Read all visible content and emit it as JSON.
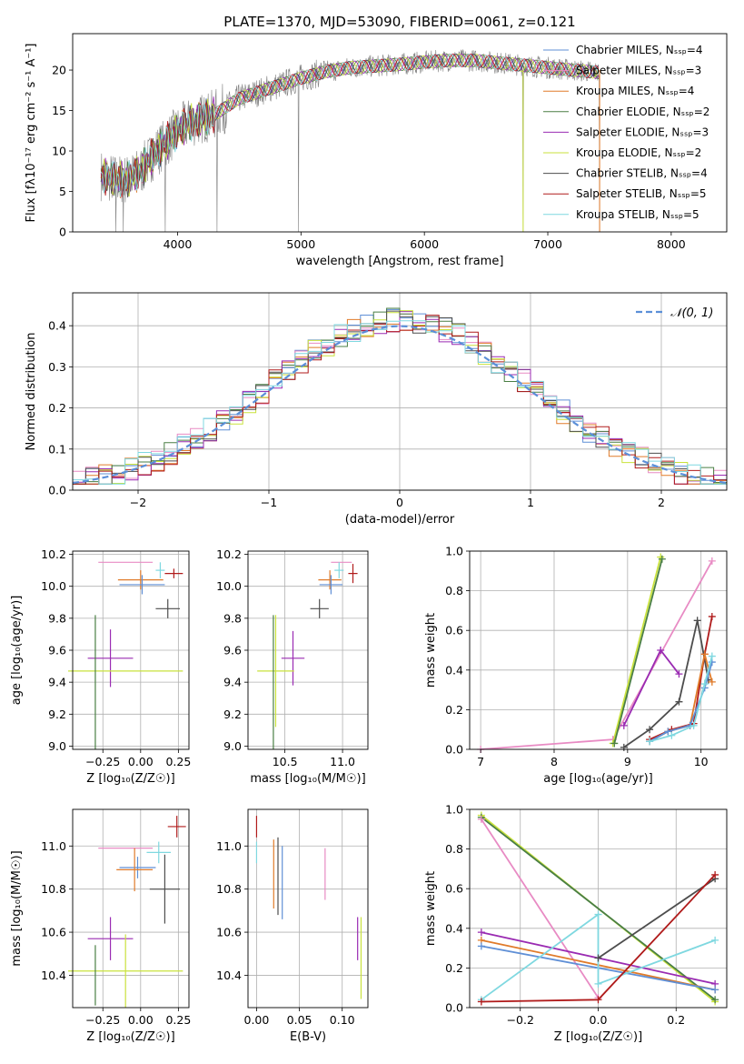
{
  "figure": {
    "title": "PLATE=1370, MJD=53090, FIBERID=0061, z=0.121"
  },
  "colors": {
    "Chabrier MILES": "#5f8fd6",
    "Salpeter MILES": "#e88bc4",
    "Kroupa MILES": "#e07b2a",
    "Chabrier ELODIE": "#4a7f44",
    "Salpeter ELODIE": "#9a2bb2",
    "Kroupa ELODIE": "#c9e23c",
    "Chabrier STELIB": "#4d4d4d",
    "Salpeter STELIB": "#b01b1b",
    "Kroupa STELIB": "#7fd8e0",
    "data": "#808080",
    "normal": "#5b8fd8"
  },
  "chart_data": [
    {
      "id": "spectrum",
      "type": "line",
      "xlabel": "wavelength [Angstrom, rest frame]",
      "ylabel": "Flux [fλ10⁻¹⁷ erg cm⁻² s⁻¹ A⁻¹]",
      "xlim": [
        3150,
        8450
      ],
      "ylim": [
        0,
        24.5
      ],
      "xticks": [
        "4000",
        "5000",
        "6000",
        "7000",
        "8000"
      ],
      "yticks": [
        "0",
        "5",
        "10",
        "15",
        "20"
      ],
      "legend_position": "right",
      "legend": [
        "Chabrier MILES, Nₛₛₚ=4",
        "Salpeter MILES, Nₛₛₚ=3",
        "Kroupa MILES, Nₛₛₚ=4",
        "Chabrier ELODIE, Nₛₛₚ=2",
        "Salpeter ELODIE, Nₛₛₚ=3",
        "Kroupa ELODIE, Nₛₛₚ=2",
        "Chabrier STELIB, Nₛₛₚ=4",
        "Salpeter STELIB, Nₛₛₚ=5",
        "Kroupa STELIB, Nₛₛₚ=5"
      ],
      "continuum": {
        "x": [
          3380,
          3500,
          3600,
          3700,
          3800,
          3900,
          4000,
          4100,
          4200,
          4300,
          4400,
          4500,
          4600,
          4700,
          4800,
          4900,
          5000,
          5200,
          5400,
          5600,
          5800,
          6000,
          6200,
          6400,
          6600,
          6800,
          7000,
          7200,
          7420
        ],
        "y": [
          7.0,
          6.5,
          6.5,
          7.5,
          9.5,
          11.0,
          12.5,
          13.5,
          14.0,
          14.5,
          15.5,
          16.5,
          17.0,
          17.5,
          18.0,
          18.5,
          19.0,
          19.8,
          20.3,
          20.5,
          20.7,
          21.0,
          21.2,
          21.2,
          20.9,
          20.6,
          20.3,
          20.0,
          19.7
        ]
      },
      "data_glitches": {
        "x": [
          3500,
          3560,
          3900,
          4320,
          4980,
          6800,
          7420
        ],
        "y": [
          0,
          0,
          0,
          0,
          0,
          0,
          0
        ]
      }
    },
    {
      "id": "residuals",
      "type": "histogram",
      "xlabel": "(data-model)/error",
      "ylabel": "Normed distribution",
      "xlim": [
        -2.5,
        2.5
      ],
      "ylim": [
        0,
        0.48
      ],
      "xticks": [
        "−2",
        "−1",
        "0",
        "1",
        "2"
      ],
      "yticks": [
        "0.0",
        "0.1",
        "0.2",
        "0.3",
        "0.4"
      ],
      "legend": [
        "𝒩(0, 1)"
      ],
      "legend_position": "top-right",
      "bin_width": 0.1,
      "bin_start": -2.5,
      "reference_curve": "standard normal density"
    },
    {
      "id": "age-vs-Z",
      "type": "errorbar",
      "xlabel": "Z [log₁₀(Z/Z☉)]",
      "ylabel": "age  [log₁₀(age/yr)]",
      "xlim": [
        -0.45,
        0.32
      ],
      "ylim": [
        8.98,
        10.22
      ],
      "xticks": [
        "−0.25",
        "0.00",
        "0.25"
      ],
      "yticks": [
        "9.0",
        "9.2",
        "9.4",
        "9.6",
        "9.8",
        "10.0",
        "10.2"
      ],
      "points": [
        {
          "model": "Salpeter MILES",
          "x": -0.1,
          "xerr": 0.18,
          "y": 10.15,
          "yerr": 0.0
        },
        {
          "model": "Kroupa MILES",
          "x": 0.0,
          "xerr": 0.15,
          "y": 10.04,
          "yerr": 0.06
        },
        {
          "model": "Chabrier MILES",
          "x": 0.01,
          "xerr": 0.15,
          "y": 10.01,
          "yerr": 0.06
        },
        {
          "model": "Kroupa STELIB",
          "x": 0.13,
          "xerr": 0.03,
          "y": 10.1,
          "yerr": 0.05
        },
        {
          "model": "Salpeter STELIB",
          "x": 0.22,
          "xerr": 0.06,
          "y": 10.08,
          "yerr": 0.03
        },
        {
          "model": "Chabrier STELIB",
          "x": 0.18,
          "xerr": 0.08,
          "y": 9.86,
          "yerr": 0.06
        },
        {
          "model": "Salpeter ELODIE",
          "x": -0.2,
          "xerr": 0.15,
          "y": 9.55,
          "yerr": 0.18
        },
        {
          "model": "Kroupa ELODIE",
          "x": -0.1,
          "xerr": 0.38,
          "y": 9.47,
          "yerr": 0.0
        },
        {
          "model": "Chabrier ELODIE",
          "x": -0.3,
          "xerr": 0.0,
          "y": 9.4,
          "yerr": 0.42
        }
      ]
    },
    {
      "id": "age-vs-mass",
      "type": "errorbar",
      "xlabel": "mass [log₁₀(M/M☉)]",
      "ylabel": "",
      "xlim": [
        10.18,
        11.22
      ],
      "ylim": [
        8.98,
        10.22
      ],
      "xticks": [
        "10.5",
        "11.0"
      ],
      "yticks": [
        "9.0",
        "9.2",
        "9.4",
        "9.6",
        "9.8",
        "10.0",
        "10.2"
      ],
      "points": [
        {
          "model": "Salpeter MILES",
          "x": 10.99,
          "xerr": 0.09,
          "y": 10.15,
          "yerr": 0.0
        },
        {
          "model": "Kroupa MILES",
          "x": 10.89,
          "xerr": 0.1,
          "y": 10.04,
          "yerr": 0.06
        },
        {
          "model": "Chabrier MILES",
          "x": 10.9,
          "xerr": 0.1,
          "y": 10.01,
          "yerr": 0.06
        },
        {
          "model": "Kroupa STELIB",
          "x": 10.97,
          "xerr": 0.04,
          "y": 10.1,
          "yerr": 0.05
        },
        {
          "model": "Salpeter STELIB",
          "x": 11.09,
          "xerr": 0.04,
          "y": 10.08,
          "yerr": 0.06
        },
        {
          "model": "Chabrier STELIB",
          "x": 10.8,
          "xerr": 0.08,
          "y": 9.86,
          "yerr": 0.06
        },
        {
          "model": "Salpeter ELODIE",
          "x": 10.57,
          "xerr": 0.1,
          "y": 9.55,
          "yerr": 0.17
        },
        {
          "model": "Kroupa ELODIE",
          "x": 10.42,
          "xerr": 0.16,
          "y": 9.47,
          "yerr": 0.35
        },
        {
          "model": "Chabrier ELODIE",
          "x": 10.4,
          "xerr": 0.0,
          "y": 9.4,
          "yerr": 0.42
        }
      ]
    },
    {
      "id": "weight-vs-age",
      "type": "line",
      "xlabel": "age  [log₁₀(age/yr)]",
      "ylabel": "mass weight",
      "xlim": [
        6.85,
        10.35
      ],
      "ylim": [
        0,
        1
      ],
      "xticks": [
        "7",
        "8",
        "9",
        "10"
      ],
      "yticks": [
        "0.0",
        "0.2",
        "0.4",
        "0.6",
        "0.8",
        "1.0"
      ],
      "series": [
        {
          "model": "Salpeter MILES",
          "x": [
            7.0,
            8.8,
            10.15
          ],
          "y": [
            0.0,
            0.05,
            0.95
          ]
        },
        {
          "model": "Kroupa ELODIE",
          "x": [
            8.8,
            9.45
          ],
          "y": [
            0.03,
            0.97
          ]
        },
        {
          "model": "Chabrier ELODIE",
          "x": [
            8.82,
            9.47
          ],
          "y": [
            0.03,
            0.96
          ]
        },
        {
          "model": "Salpeter ELODIE",
          "x": [
            8.95,
            9.45,
            9.7
          ],
          "y": [
            0.12,
            0.5,
            0.38
          ]
        },
        {
          "model": "Chabrier STELIB",
          "x": [
            8.95,
            9.3,
            9.7,
            9.95,
            10.1
          ],
          "y": [
            0.01,
            0.1,
            0.24,
            0.65,
            0.35
          ]
        },
        {
          "model": "Salpeter STELIB",
          "x": [
            9.3,
            9.6,
            9.9,
            10.05,
            10.15
          ],
          "y": [
            0.05,
            0.1,
            0.13,
            0.48,
            0.67
          ]
        },
        {
          "model": "Kroupa MILES",
          "x": [
            9.3,
            9.55,
            9.85,
            10.05,
            10.15
          ],
          "y": [
            0.04,
            0.09,
            0.12,
            0.48,
            0.34
          ]
        },
        {
          "model": "Chabrier MILES",
          "x": [
            9.3,
            9.55,
            9.85,
            10.05,
            10.15
          ],
          "y": [
            0.04,
            0.09,
            0.12,
            0.31,
            0.44
          ]
        },
        {
          "model": "Kroupa STELIB",
          "x": [
            9.3,
            9.6,
            9.9,
            10.05,
            10.15
          ],
          "y": [
            0.04,
            0.07,
            0.12,
            0.33,
            0.47
          ]
        }
      ]
    },
    {
      "id": "mass-vs-Z",
      "type": "errorbar",
      "xlabel": "Z [log₁₀(Z/Z☉)]",
      "ylabel": "mass [log₁₀(M/M☉)]",
      "xlim": [
        -0.45,
        0.32
      ],
      "ylim": [
        10.25,
        11.17
      ],
      "xticks": [
        "−0.25",
        "0.00",
        "0.25"
      ],
      "yticks": [
        "10.4",
        "10.6",
        "10.8",
        "11.0"
      ],
      "points": [
        {
          "model": "Salpeter STELIB",
          "x": 0.24,
          "xerr": 0.06,
          "y": 11.09,
          "yerr": 0.05
        },
        {
          "model": "Salpeter MILES",
          "x": -0.1,
          "xerr": 0.18,
          "y": 10.99,
          "yerr": 0.0
        },
        {
          "model": "Kroupa STELIB",
          "x": 0.12,
          "xerr": 0.08,
          "y": 10.97,
          "yerr": 0.05
        },
        {
          "model": "Chabrier MILES",
          "x": -0.02,
          "xerr": 0.12,
          "y": 10.9,
          "yerr": 0.05
        },
        {
          "model": "Kroupa MILES",
          "x": -0.04,
          "xerr": 0.12,
          "y": 10.89,
          "yerr": 0.1
        },
        {
          "model": "Chabrier STELIB",
          "x": 0.16,
          "xerr": 0.1,
          "y": 10.8,
          "yerr": 0.16
        },
        {
          "model": "Salpeter ELODIE",
          "x": -0.2,
          "xerr": 0.15,
          "y": 10.57,
          "yerr": 0.1
        },
        {
          "model": "Kroupa ELODIE",
          "x": -0.1,
          "xerr": 0.38,
          "y": 10.42,
          "yerr": 0.17
        },
        {
          "model": "Chabrier ELODIE",
          "x": -0.3,
          "xerr": 0.0,
          "y": 10.4,
          "yerr": 0.14
        }
      ]
    },
    {
      "id": "mass-vs-ebv",
      "type": "errorbar",
      "xlabel": "E(B-V)",
      "ylabel": "",
      "xlim": [
        -0.01,
        0.13
      ],
      "ylim": [
        10.25,
        11.17
      ],
      "xticks": [
        "0.00",
        "0.05",
        "0.10"
      ],
      "yticks": [
        "10.4",
        "10.6",
        "10.8",
        "11.0"
      ],
      "points": [
        {
          "model": "Salpeter STELIB",
          "x": 0.0,
          "xerr": 0.0,
          "y": 11.09,
          "yerr": 0.05
        },
        {
          "model": "Kroupa STELIB",
          "x": 0.0,
          "xerr": 0.0,
          "y": 10.97,
          "yerr": 0.05
        },
        {
          "model": "Kroupa MILES",
          "x": 0.02,
          "xerr": 0.0,
          "y": 10.87,
          "yerr": 0.16
        },
        {
          "model": "Chabrier STELIB",
          "x": 0.025,
          "xerr": 0.0,
          "y": 10.86,
          "yerr": 0.18
        },
        {
          "model": "Chabrier MILES",
          "x": 0.03,
          "xerr": 0.0,
          "y": 10.83,
          "yerr": 0.17
        },
        {
          "model": "Salpeter MILES",
          "x": 0.08,
          "xerr": 0.0,
          "y": 10.87,
          "yerr": 0.12
        },
        {
          "model": "Salpeter ELODIE",
          "x": 0.118,
          "xerr": 0.0,
          "y": 10.57,
          "yerr": 0.1
        },
        {
          "model": "Kroupa ELODIE",
          "x": 0.122,
          "xerr": 0.0,
          "y": 10.48,
          "yerr": 0.19
        }
      ]
    },
    {
      "id": "weight-vs-Z",
      "type": "line",
      "xlabel": "Z [log₁₀(Z/Z☉)]",
      "ylabel": "mass weight",
      "xlim": [
        -0.33,
        0.33
      ],
      "ylim": [
        0,
        1
      ],
      "xticks": [
        "−0.2",
        "0.0",
        "0.2"
      ],
      "yticks": [
        "0.0",
        "0.2",
        "0.4",
        "0.6",
        "0.8",
        "1.0"
      ],
      "series": [
        {
          "model": "Kroupa ELODIE",
          "x": [
            -0.3,
            0.3
          ],
          "y": [
            0.97,
            0.03
          ]
        },
        {
          "model": "Chabrier ELODIE",
          "x": [
            -0.3,
            0.3
          ],
          "y": [
            0.96,
            0.04
          ]
        },
        {
          "model": "Salpeter MILES",
          "x": [
            -0.3,
            0.0
          ],
          "y": [
            0.95,
            0.05
          ]
        },
        {
          "model": "Salpeter ELODIE",
          "x": [
            -0.3,
            0.3
          ],
          "y": [
            0.38,
            0.12
          ]
        },
        {
          "model": "Kroupa MILES",
          "x": [
            -0.3,
            0.3
          ],
          "y": [
            0.34,
            0.09
          ]
        },
        {
          "model": "Chabrier MILES",
          "x": [
            -0.3,
            0.0,
            0.3
          ],
          "y": [
            0.31,
            0.2,
            0.09
          ]
        },
        {
          "model": "Kroupa STELIB",
          "x": [
            -0.3,
            0.0,
            0.0,
            0.3
          ],
          "y": [
            0.04,
            0.47,
            0.12,
            0.34
          ]
        },
        {
          "model": "Chabrier STELIB",
          "x": [
            0.0,
            0.3
          ],
          "y": [
            0.25,
            0.65
          ]
        },
        {
          "model": "Salpeter STELIB",
          "x": [
            -0.3,
            0.0,
            0.3
          ],
          "y": [
            0.03,
            0.04,
            0.67
          ]
        }
      ]
    }
  ]
}
